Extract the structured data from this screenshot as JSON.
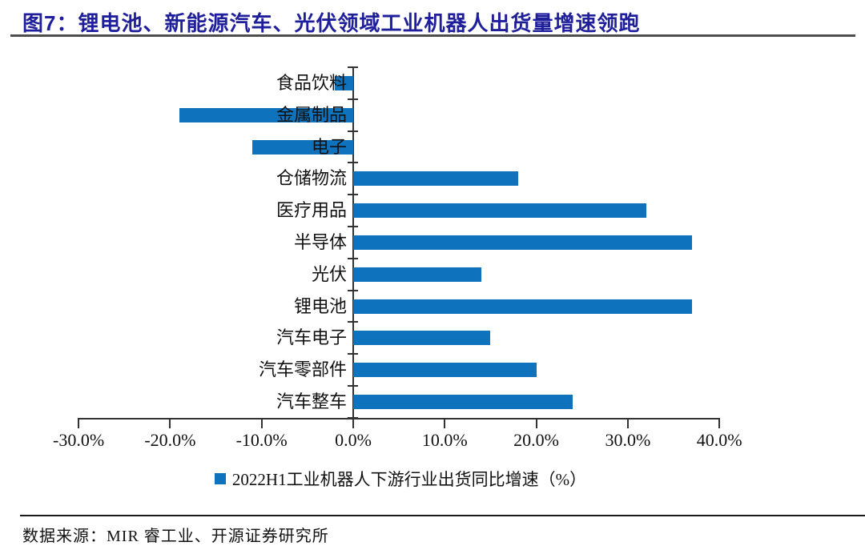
{
  "figure": {
    "title": "图7：锂电池、新能源汽车、光伏领域工业机器人出货量增速领跑"
  },
  "colors": {
    "bar": "#0E72BC",
    "title": "#1F1F9B",
    "header_rule": "#4D4D4D",
    "axis": "#333333"
  },
  "chart_data": {
    "type": "bar",
    "orientation": "horizontal",
    "title": "",
    "xlabel": "",
    "ylabel": "",
    "categories": [
      "食品饮料",
      "金属制品",
      "电子",
      "仓储物流",
      "医疗用品",
      "半导体",
      "光伏",
      "锂电池",
      "汽车电子",
      "汽车零部件",
      "汽车整车"
    ],
    "values": [
      -2,
      -19,
      -11,
      18,
      32,
      37,
      14,
      37,
      15,
      20,
      24
    ],
    "unit": "%",
    "xlim": [
      -30,
      40
    ],
    "x_ticks": [
      -30,
      -20,
      -10,
      0,
      10,
      20,
      30,
      40
    ],
    "x_tick_labels": [
      "-30.0%",
      "-20.0%",
      "-10.0%",
      "0.0%",
      "10.0%",
      "20.0%",
      "30.0%",
      "40.0%"
    ],
    "grid": false,
    "legend_position": "bottom",
    "series": [
      {
        "name": "2022H1工业机器人下游行业出货同比增速（%）",
        "values": [
          -2,
          -19,
          -11,
          18,
          32,
          37,
          14,
          37,
          15,
          20,
          24
        ]
      }
    ]
  },
  "legend": {
    "label": "2022H1工业机器人下游行业出货同比增速（%）"
  },
  "footer": {
    "source": "数据来源：MIR 睿工业、开源证券研究所"
  }
}
